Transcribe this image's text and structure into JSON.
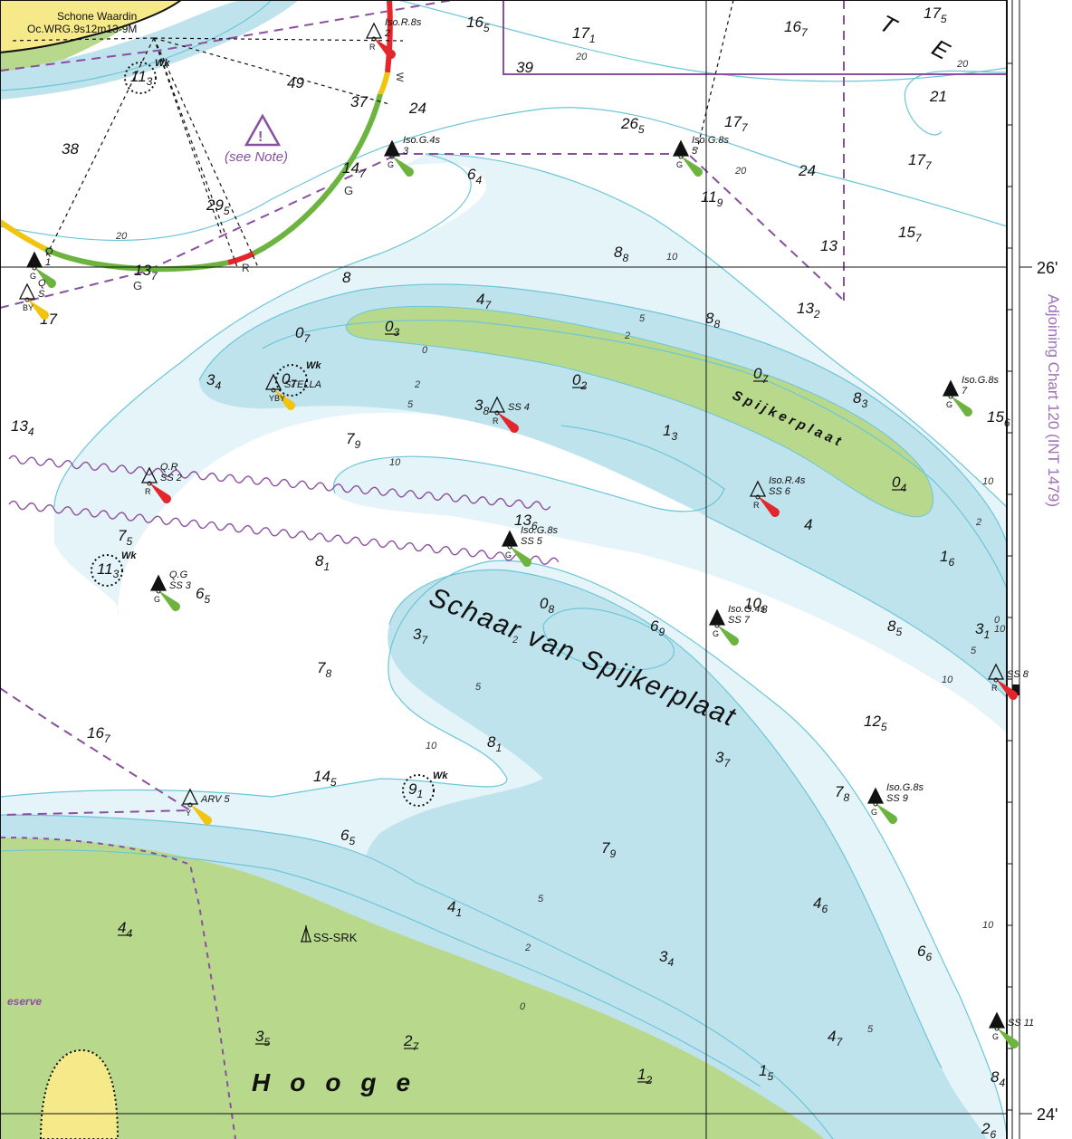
{
  "light": {
    "name": "Schone Waardin",
    "characteristic": "Oc.WRG.9s12m13-9M",
    "sector_labels": [
      "W",
      "G",
      "G",
      "R"
    ]
  },
  "area_labels": {
    "channel": "Schaar van Spijkerplaat",
    "shoal": "Spijkerplaat",
    "island": "Hooge",
    "reserve": "eserve",
    "note": "(see Note)",
    "station": "SS-SRK",
    "letter_t": "T",
    "letter_e": "E"
  },
  "margin": {
    "adjoining_chart": "Adjoining Chart 120 (INT 1479)",
    "lat_26": "26'",
    "lat_24": "24'"
  },
  "buoys": [
    {
      "id": "iso-r-8s-2",
      "char": "Iso.R.8s",
      "num": "2",
      "colour": "R"
    },
    {
      "id": "iso-g-4s-3",
      "char": "Iso.G.4s",
      "num": "3",
      "colour": "G"
    },
    {
      "id": "iso-g-8s-5",
      "char": "Iso.G.8s",
      "num": "5",
      "colour": "G"
    },
    {
      "id": "q-1",
      "char": "Q",
      "num": "1",
      "colour": "G"
    },
    {
      "id": "q-s",
      "char": "Q",
      "num": "S",
      "colour": "BY"
    },
    {
      "id": "stella",
      "char": "",
      "num": "STELLA",
      "colour": "YBY"
    },
    {
      "id": "ss4",
      "char": "",
      "num": "SS 4",
      "colour": "R"
    },
    {
      "id": "iso-g-8s-7",
      "char": "Iso.G.8s",
      "num": "7",
      "colour": "G"
    },
    {
      "id": "ss2",
      "char": "Q.R",
      "num": "SS 2",
      "colour": "R"
    },
    {
      "id": "ss6",
      "char": "Iso.R.4s",
      "num": "SS 6",
      "colour": "R"
    },
    {
      "id": "ss5",
      "char": "Iso.G.8s",
      "num": "SS 5",
      "colour": "G"
    },
    {
      "id": "ss3",
      "char": "Q.G",
      "num": "SS 3",
      "colour": "G"
    },
    {
      "id": "ss7",
      "char": "Iso.G.4s",
      "num": "SS 7",
      "colour": "G"
    },
    {
      "id": "ss8",
      "char": "",
      "num": "SS 8",
      "colour": "R"
    },
    {
      "id": "ss9",
      "char": "Iso.G.8s",
      "num": "SS 9",
      "colour": "G"
    },
    {
      "id": "arv5",
      "char": "",
      "num": "ARV 5",
      "colour": "Y"
    },
    {
      "id": "ss11",
      "char": "",
      "num": "SS 11",
      "colour": "G"
    }
  ],
  "wrecks": [
    {
      "depth": "11",
      "sub": "3",
      "tag": "Wk"
    },
    {
      "depth": "0",
      "sub": "7",
      "tag": "Wk"
    },
    {
      "depth": "11",
      "sub": "3",
      "tag": "Wk"
    },
    {
      "depth": "9",
      "sub": "1",
      "tag": "Wk"
    }
  ],
  "soundings": [
    {
      "m": "16",
      "d": "5"
    },
    {
      "m": "17",
      "d": "1"
    },
    {
      "m": "16",
      "d": "7"
    },
    {
      "m": "17",
      "d": "5"
    },
    {
      "m": "39",
      "d": ""
    },
    {
      "m": "49",
      "d": ""
    },
    {
      "m": "38",
      "d": ""
    },
    {
      "m": "37",
      "d": ""
    },
    {
      "m": "24",
      "d": ""
    },
    {
      "m": "21",
      "d": ""
    },
    {
      "m": "26",
      "d": "5"
    },
    {
      "m": "17",
      "d": "7"
    },
    {
      "m": "14",
      "d": "7"
    },
    {
      "m": "6",
      "d": "4"
    },
    {
      "m": "24",
      "d": ""
    },
    {
      "m": "17",
      "d": "7"
    },
    {
      "m": "11",
      "d": "9"
    },
    {
      "m": "29",
      "d": "5"
    },
    {
      "m": "8",
      "d": "8"
    },
    {
      "m": "13",
      "d": ""
    },
    {
      "m": "15",
      "d": "7"
    },
    {
      "m": "13",
      "d": "7"
    },
    {
      "m": "8",
      "d": ""
    },
    {
      "m": "4",
      "d": "7"
    },
    {
      "m": "17",
      "d": ""
    },
    {
      "m": "0",
      "d": "7"
    },
    {
      "m": "0",
      "d": "3",
      "dry": true
    },
    {
      "m": "8",
      "d": "8"
    },
    {
      "m": "13",
      "d": "2"
    },
    {
      "m": "3",
      "d": "4"
    },
    {
      "m": "0",
      "d": "2",
      "dry": true
    },
    {
      "m": "0",
      "d": "7",
      "dry": true
    },
    {
      "m": "8",
      "d": "3"
    },
    {
      "m": "15",
      "d": "6"
    },
    {
      "m": "13",
      "d": "4"
    },
    {
      "m": "3",
      "d": "8"
    },
    {
      "m": "1",
      "d": "3"
    },
    {
      "m": "7",
      "d": "9"
    },
    {
      "m": "0",
      "d": "4",
      "dry": true
    },
    {
      "m": "13",
      "d": "6"
    },
    {
      "m": "4",
      "d": ""
    },
    {
      "m": "7",
      "d": "5"
    },
    {
      "m": "8",
      "d": "1"
    },
    {
      "m": "1",
      "d": "6"
    },
    {
      "m": "6",
      "d": "5"
    },
    {
      "m": "0",
      "d": "8"
    },
    {
      "m": "10",
      "d": "8"
    },
    {
      "m": "6",
      "d": "9"
    },
    {
      "m": "8",
      "d": "5"
    },
    {
      "m": "3",
      "d": "1"
    },
    {
      "m": "3",
      "d": "7"
    },
    {
      "m": "7",
      "d": "8"
    },
    {
      "m": "12",
      "d": "5"
    },
    {
      "m": "16",
      "d": "7"
    },
    {
      "m": "8",
      "d": "1"
    },
    {
      "m": "3",
      "d": "7"
    },
    {
      "m": "14",
      "d": "5"
    },
    {
      "m": "7",
      "d": "8"
    },
    {
      "m": "6",
      "d": "5"
    },
    {
      "m": "7",
      "d": "9"
    },
    {
      "m": "4",
      "d": "1"
    },
    {
      "m": "4",
      "d": "6"
    },
    {
      "m": "4",
      "d": "4",
      "dry": true
    },
    {
      "m": "3",
      "d": "4"
    },
    {
      "m": "6",
      "d": "6"
    },
    {
      "m": "3",
      "d": "5",
      "dry": true
    },
    {
      "m": "2",
      "d": "7",
      "dry": true
    },
    {
      "m": "4",
      "d": "7"
    },
    {
      "m": "1",
      "d": "2",
      "dry": true
    },
    {
      "m": "1",
      "d": "5"
    },
    {
      "m": "8",
      "d": "4"
    },
    {
      "m": "2",
      "d": "6"
    }
  ],
  "contours": [
    "20",
    "20",
    "20",
    "20",
    "10",
    "10",
    "10",
    "10",
    "10",
    "10",
    "10",
    "5",
    "5",
    "5",
    "5",
    "5",
    "5",
    "2",
    "2",
    "2",
    "2",
    "2",
    "0",
    "0",
    "0"
  ],
  "colors": {
    "land": "#b8d98c",
    "land_yellow": "#f6e98a",
    "shallow": "#bfe3ec",
    "mid": "#e4f4f8",
    "deep": "#ffffff",
    "contour": "#6cc6d8",
    "purple": "#8a4fa0",
    "buoy_red": "#e2262b",
    "buoy_green": "#6db33f",
    "buoy_yellow": "#f1c40f",
    "sector_green": "#6db33f",
    "sector_yellow": "#f1c40f",
    "sector_red": "#e2262b"
  }
}
